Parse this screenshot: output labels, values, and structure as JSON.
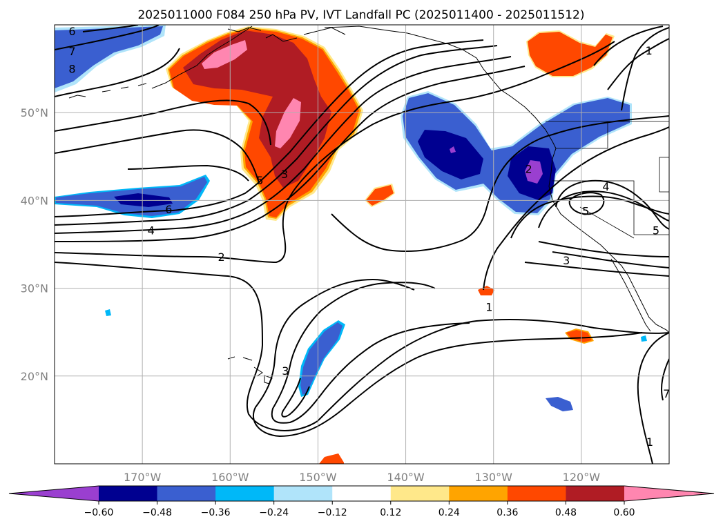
{
  "title": "2025011000 F084 250 hPa PV, IVT Landfall PC (2025011400 - 2025011512)",
  "map": {
    "lon_range": [
      -180,
      -110
    ],
    "lat_range": [
      10,
      60
    ],
    "lon_ticks": [
      {
        "value": -170,
        "label": "170°W"
      },
      {
        "value": -160,
        "label": "160°W"
      },
      {
        "value": -150,
        "label": "150°W"
      },
      {
        "value": -140,
        "label": "140°W"
      },
      {
        "value": -130,
        "label": "130°W"
      },
      {
        "value": -120,
        "label": "120°W"
      }
    ],
    "lat_ticks": [
      {
        "value": 50,
        "label": "50°N"
      },
      {
        "value": 40,
        "label": "40°N"
      },
      {
        "value": 30,
        "label": "30°N"
      },
      {
        "value": 20,
        "label": "20°N"
      }
    ],
    "grid": true,
    "contour_labels": [
      {
        "text": "6",
        "lon": -178.0,
        "lat": 59.3
      },
      {
        "text": "7",
        "lon": -178.0,
        "lat": 57.0
      },
      {
        "text": "8",
        "lon": -178.0,
        "lat": 55.0
      },
      {
        "text": "5",
        "lon": -156.6,
        "lat": 42.3
      },
      {
        "text": "3",
        "lon": -153.8,
        "lat": 43.0
      },
      {
        "text": "6",
        "lon": -167.0,
        "lat": 39.0
      },
      {
        "text": "4",
        "lon": -169.0,
        "lat": 36.6
      },
      {
        "text": "2",
        "lon": -161.0,
        "lat": 33.6
      },
      {
        "text": "2",
        "lon": -126.0,
        "lat": 43.6
      },
      {
        "text": "5",
        "lon": -119.5,
        "lat": 38.8
      },
      {
        "text": "4",
        "lon": -117.2,
        "lat": 41.6
      },
      {
        "text": "5",
        "lon": -111.5,
        "lat": 36.6
      },
      {
        "text": "3",
        "lon": -121.7,
        "lat": 33.2
      },
      {
        "text": "1",
        "lon": -130.5,
        "lat": 27.9
      },
      {
        "text": "3",
        "lon": -153.7,
        "lat": 20.6
      },
      {
        "text": "1",
        "lon": -112.3,
        "lat": 57.1
      },
      {
        "text": "1",
        "lon": -112.2,
        "lat": 12.5
      },
      {
        "text": "7",
        "lon": -110.3,
        "lat": 18.0
      }
    ]
  },
  "colorbar": {
    "levels": [
      -0.6,
      -0.48,
      -0.36,
      -0.24,
      -0.12,
      0.12,
      0.24,
      0.36,
      0.48,
      0.6
    ],
    "labels": [
      "−0.60",
      "−0.48",
      "−0.36",
      "−0.24",
      "−0.12",
      "0.12",
      "0.24",
      "0.36",
      "0.48",
      "0.60"
    ],
    "colors": [
      "#9a3fd0",
      "#000090",
      "#3a5fd0",
      "#00b8f8",
      "#b0e4fa",
      "#ffffff",
      "#ffe88a",
      "#ffa400",
      "#ff4800",
      "#b01c24",
      "#ff86b0"
    ],
    "extend": "both"
  },
  "colors": {
    "contour": "#000000",
    "coast": "#000000",
    "grid": "#b0b0b0"
  }
}
